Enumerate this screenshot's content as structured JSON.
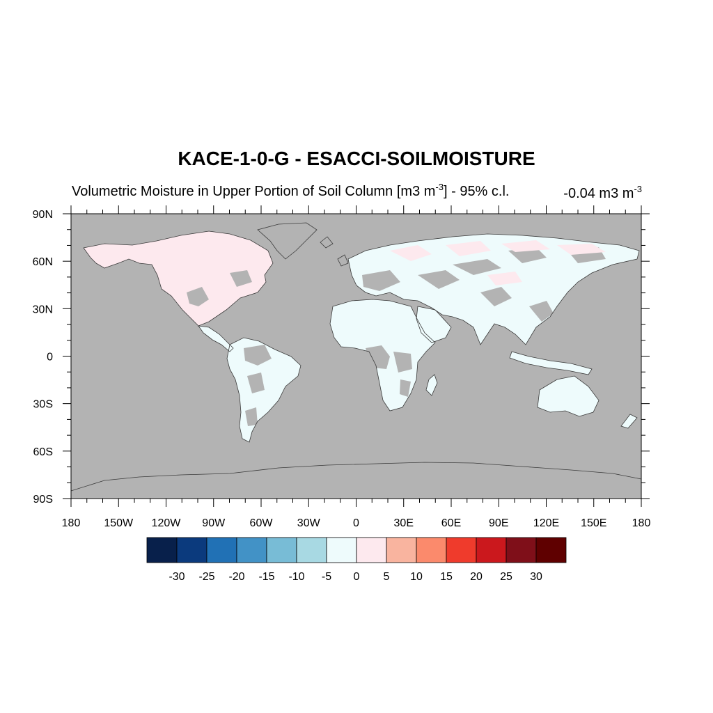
{
  "title": "KACE-1-0-G - ESACCI-SOILMOISTURE",
  "subtitle": {
    "main": "Volumetric Moisture in Upper Portion of Soil Column [m3 m",
    "exp": "-3",
    "rest": "] - 95% c.l."
  },
  "right_label": {
    "main": "-0.04 m3 m",
    "exp": "-3"
  },
  "map": {
    "projection": "cylindrical-equidistant",
    "lon_range": [
      -180,
      180
    ],
    "lat_range": [
      -90,
      90
    ],
    "lat_ticks": [
      {
        "value": 90,
        "label": "90N"
      },
      {
        "value": 60,
        "label": "60N"
      },
      {
        "value": 30,
        "label": "30N"
      },
      {
        "value": 0,
        "label": "0"
      },
      {
        "value": -30,
        "label": "30S"
      },
      {
        "value": -60,
        "label": "60S"
      },
      {
        "value": -90,
        "label": "90S"
      }
    ],
    "lon_ticks": [
      {
        "value": -180,
        "label": "180"
      },
      {
        "value": -150,
        "label": "150W"
      },
      {
        "value": -120,
        "label": "120W"
      },
      {
        "value": -90,
        "label": "90W"
      },
      {
        "value": -60,
        "label": "60W"
      },
      {
        "value": -30,
        "label": "30W"
      },
      {
        "value": 0,
        "label": "0"
      },
      {
        "value": 30,
        "label": "30E"
      },
      {
        "value": 60,
        "label": "60E"
      },
      {
        "value": 90,
        "label": "90E"
      },
      {
        "value": 120,
        "label": "120E"
      },
      {
        "value": 150,
        "label": "150E"
      },
      {
        "value": 180,
        "label": "180"
      }
    ],
    "missing_color": "#b3b3b3"
  },
  "colorbar": {
    "colors": [
      "#08204b",
      "#0b3a7d",
      "#2171b5",
      "#4292c6",
      "#78bcd6",
      "#a8d9e3",
      "#eefbfc",
      "#fde9ee",
      "#f9b49f",
      "#fb8a6c",
      "#ef3b2c",
      "#cb181d",
      "#7f0f19",
      "#5f0000"
    ],
    "labels": [
      "-30",
      "-25",
      "-20",
      "-15",
      "-10",
      "-5",
      "0",
      "5",
      "10",
      "15",
      "20",
      "25",
      "30"
    ]
  }
}
